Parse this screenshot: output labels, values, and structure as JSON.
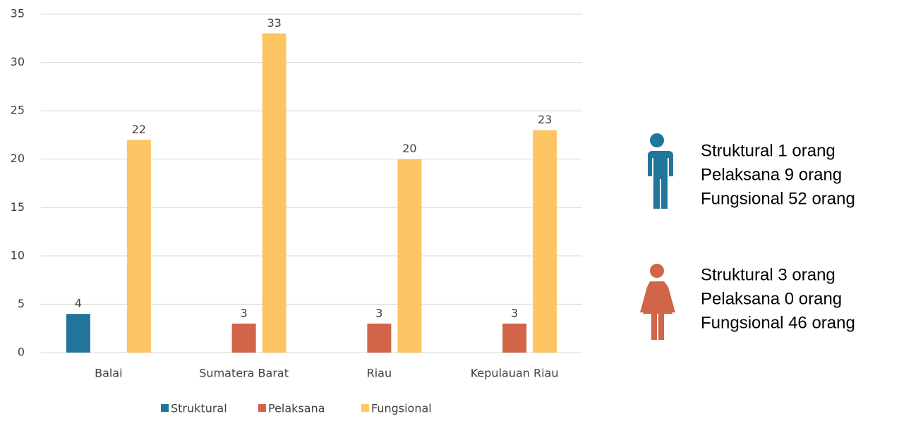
{
  "chart_data": {
    "type": "bar",
    "categories": [
      "Balai",
      "Sumatera Barat",
      "Riau",
      "Kepulauan Riau"
    ],
    "series": [
      {
        "name": "Struktural",
        "color": "#21759b",
        "values": [
          4,
          null,
          null,
          null
        ]
      },
      {
        "name": "Pelaksana",
        "color": "#d0654a",
        "values": [
          null,
          3,
          3,
          3
        ]
      },
      {
        "name": "Fungsional",
        "color": "#fdc564",
        "values": [
          22,
          33,
          20,
          23
        ]
      }
    ],
    "ylim": [
      0,
      35
    ],
    "yticks": [
      0,
      5,
      10,
      15,
      20,
      25,
      30,
      35
    ],
    "grid": true,
    "legend": "bottom"
  },
  "side_panel": {
    "male": {
      "color": "#21759b",
      "lines": [
        "Struktural 1 orang",
        "Pelaksana 9 orang",
        "Fungsional 52 orang"
      ]
    },
    "female": {
      "color": "#d0654a",
      "lines": [
        "Struktural 3 orang",
        "Pelaksana 0 orang",
        "Fungsional 46 orang"
      ]
    }
  }
}
